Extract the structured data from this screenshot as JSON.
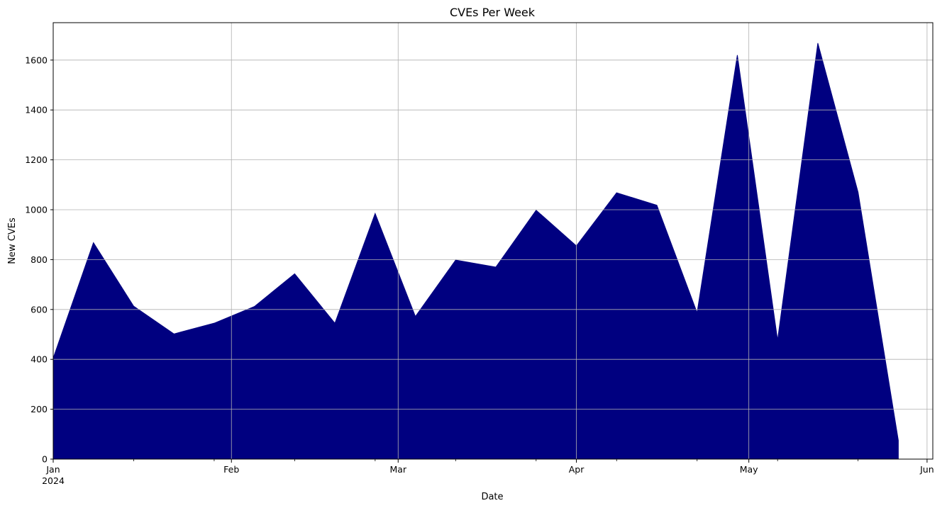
{
  "chart_data": {
    "type": "area",
    "title": "CVEs Per Week",
    "xlabel": "Date",
    "ylabel": "New CVEs",
    "x": [
      "2024-01-01",
      "2024-01-08",
      "2024-01-15",
      "2024-01-22",
      "2024-01-29",
      "2024-02-05",
      "2024-02-12",
      "2024-02-19",
      "2024-02-26",
      "2024-03-04",
      "2024-03-11",
      "2024-03-18",
      "2024-03-25",
      "2024-04-01",
      "2024-04-08",
      "2024-04-15",
      "2024-04-22",
      "2024-04-29",
      "2024-05-06",
      "2024-05-13",
      "2024-05-20",
      "2024-05-27"
    ],
    "values": [
      405,
      868,
      613,
      502,
      545,
      612,
      743,
      545,
      985,
      572,
      798,
      770,
      998,
      855,
      1068,
      1018,
      587,
      1620,
      477,
      1668,
      1070,
      75
    ],
    "xlim": [
      "2024-01-01",
      "2024-06-02"
    ],
    "ylim": [
      0,
      1750
    ],
    "yticks": [
      0,
      200,
      400,
      600,
      800,
      1000,
      1200,
      1400,
      1600
    ],
    "xticks": [
      {
        "date": "2024-01-01",
        "label": "Jan",
        "sublabel": "2024"
      },
      {
        "date": "2024-02-01",
        "label": "Feb",
        "sublabel": ""
      },
      {
        "date": "2024-03-01",
        "label": "Mar",
        "sublabel": ""
      },
      {
        "date": "2024-04-01",
        "label": "Apr",
        "sublabel": ""
      },
      {
        "date": "2024-05-01",
        "label": "May",
        "sublabel": ""
      },
      {
        "date": "2024-06-01",
        "label": "Jun",
        "sublabel": ""
      }
    ],
    "grid": true,
    "fill_color": "#000080",
    "grid_color": "#b0b0b0"
  }
}
